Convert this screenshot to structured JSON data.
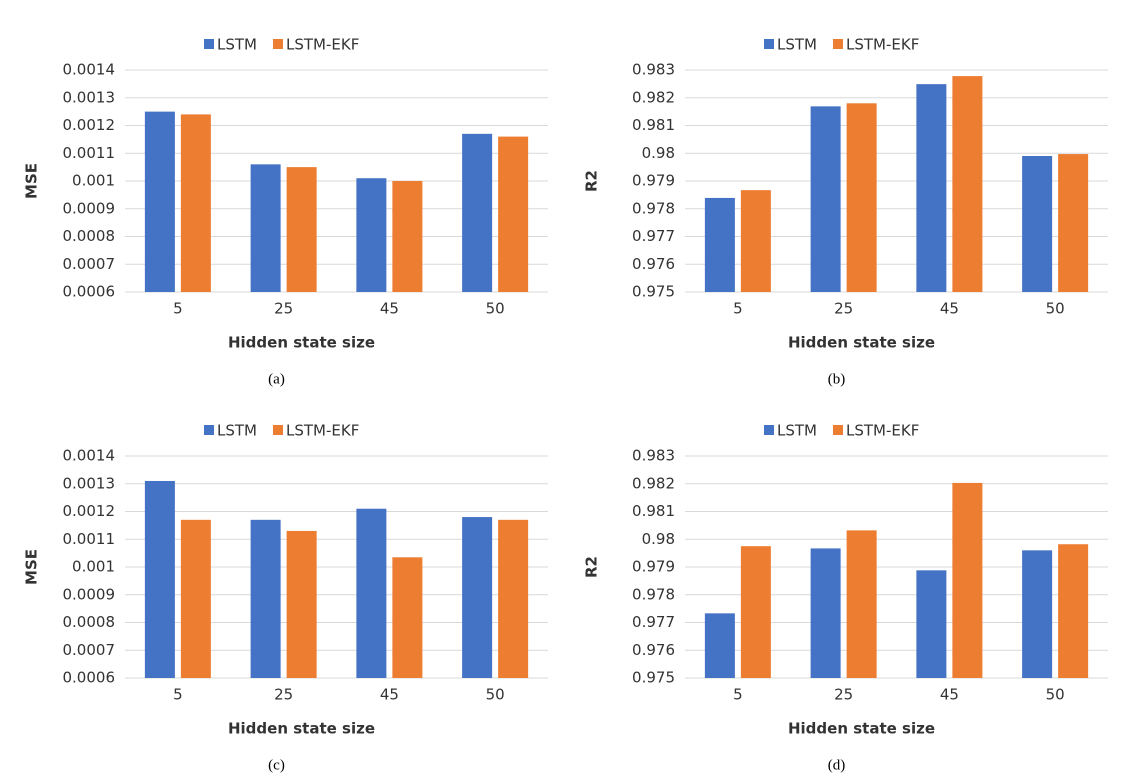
{
  "chart_data": [
    {
      "type": "bar",
      "caption": "(a)",
      "xlabel": "Hidden state size",
      "ylabel": "MSE",
      "legend": "top",
      "grid": true,
      "categories": [
        "5",
        "25",
        "45",
        "50"
      ],
      "series": [
        {
          "name": "LSTM",
          "color": "#4472c4",
          "values": [
            0.00125,
            0.00106,
            0.00101,
            0.00117
          ]
        },
        {
          "name": "LSTM-EKF",
          "color": "#ed7d31",
          "values": [
            0.00124,
            0.00105,
            0.001,
            0.00116
          ]
        }
      ],
      "ylim": [
        0.0006,
        0.0014
      ],
      "yticks": [
        0.0006,
        0.0007,
        0.0008,
        0.0009,
        0.001,
        0.0011,
        0.0012,
        0.0013,
        0.0014
      ]
    },
    {
      "type": "bar",
      "caption": "(b)",
      "xlabel": "Hidden state size",
      "ylabel": "R2",
      "legend": "top",
      "grid": true,
      "categories": [
        "5",
        "25",
        "45",
        "50"
      ],
      "series": [
        {
          "name": "LSTM",
          "color": "#4472c4",
          "values": [
            0.97839,
            0.98169,
            0.98249,
            0.9799
          ]
        },
        {
          "name": "LSTM-EKF",
          "color": "#ed7d31",
          "values": [
            0.97867,
            0.9818,
            0.98278,
            0.97997
          ]
        }
      ],
      "ylim": [
        0.975,
        0.983
      ],
      "yticks": [
        0.975,
        0.976,
        0.977,
        0.978,
        0.979,
        0.98,
        0.981,
        0.982,
        0.983
      ]
    },
    {
      "type": "bar",
      "caption": "(c)",
      "xlabel": "Hidden state size",
      "ylabel": "MSE",
      "legend": "top",
      "grid": true,
      "categories": [
        "5",
        "25",
        "45",
        "50"
      ],
      "series": [
        {
          "name": "LSTM",
          "color": "#4472c4",
          "values": [
            0.00131,
            0.00117,
            0.00121,
            0.00118
          ]
        },
        {
          "name": "LSTM-EKF",
          "color": "#ed7d31",
          "values": [
            0.00117,
            0.00113,
            0.001035,
            0.00117
          ]
        }
      ],
      "ylim": [
        0.0006,
        0.0014
      ],
      "yticks": [
        0.0006,
        0.0007,
        0.0008,
        0.0009,
        0.001,
        0.0011,
        0.0012,
        0.0013,
        0.0014
      ]
    },
    {
      "type": "bar",
      "caption": "(d)",
      "xlabel": "Hidden state size",
      "ylabel": "R2",
      "legend": "top",
      "grid": true,
      "categories": [
        "5",
        "25",
        "45",
        "50"
      ],
      "series": [
        {
          "name": "LSTM",
          "color": "#4472c4",
          "values": [
            0.97733,
            0.97967,
            0.97888,
            0.9796
          ]
        },
        {
          "name": "LSTM-EKF",
          "color": "#ed7d31",
          "values": [
            0.97975,
            0.98032,
            0.98203,
            0.97982
          ]
        }
      ],
      "ylim": [
        0.975,
        0.983
      ],
      "yticks": [
        0.975,
        0.976,
        0.977,
        0.978,
        0.979,
        0.98,
        0.981,
        0.982,
        0.983
      ]
    }
  ]
}
